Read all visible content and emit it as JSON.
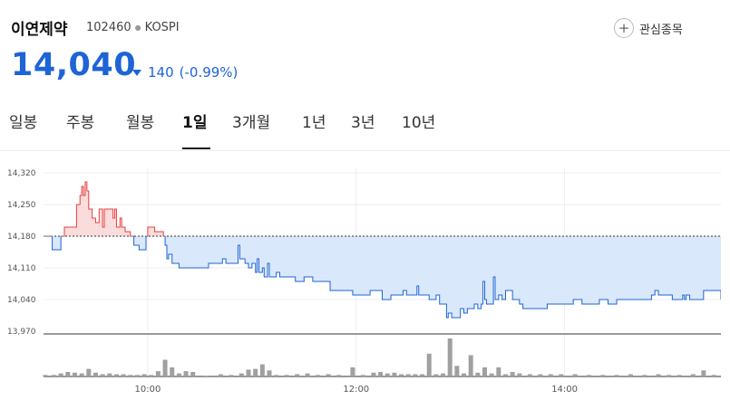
{
  "stock": {
    "name": "이연제약",
    "code": "102460",
    "market": "KOSPI",
    "price": "14,040",
    "change": "140",
    "change_pct": "(-0.99%)",
    "direction": "down"
  },
  "watch_button": {
    "label": "관심종목"
  },
  "tabs": [
    "일봉",
    "주봉",
    "월봉",
    "1일",
    "3개월",
    "1년",
    "3년",
    "10년"
  ],
  "active_tab": "1일",
  "colors": {
    "down": "#1e64d6",
    "up": "#e5403f",
    "down_fill": "#d9e8fb",
    "up_fill": "#fbdcdc",
    "volume": "#a0a0a0"
  },
  "chart_data": {
    "type": "line",
    "reference_price": 14180,
    "ylim": [
      13970,
      14320
    ],
    "y_ticks": [
      "14,320",
      "14,250",
      "14,180",
      "14,110",
      "14,040",
      "13,970"
    ],
    "x_ticks": [
      "10:00",
      "12:00",
      "14:00"
    ],
    "x_range": [
      "09:00",
      "15:30"
    ],
    "series": [
      {
        "points": [
          [
            "09:00",
            14180
          ],
          [
            "09:04",
            14180
          ],
          [
            "09:05",
            14150
          ],
          [
            "09:08",
            14150
          ],
          [
            "09:10",
            14180
          ],
          [
            "09:12",
            14200
          ],
          [
            "09:18",
            14200
          ],
          [
            "09:19",
            14250
          ],
          [
            "09:21",
            14270
          ],
          [
            "09:22",
            14290
          ],
          [
            "09:23",
            14270
          ],
          [
            "09:24",
            14300
          ],
          [
            "09:25",
            14280
          ],
          [
            "09:26",
            14240
          ],
          [
            "09:28",
            14220
          ],
          [
            "09:30",
            14210
          ],
          [
            "09:32",
            14240
          ],
          [
            "09:34",
            14200
          ],
          [
            "09:35",
            14240
          ],
          [
            "09:38",
            14240
          ],
          [
            "09:40",
            14220
          ],
          [
            "09:41",
            14240
          ],
          [
            "09:42",
            14200
          ],
          [
            "09:44",
            14220
          ],
          [
            "09:45",
            14200
          ],
          [
            "09:47",
            14190
          ],
          [
            "09:50",
            14180
          ],
          [
            "09:52",
            14160
          ],
          [
            "09:55",
            14150
          ],
          [
            "09:58",
            14150
          ],
          [
            "09:59",
            14180
          ],
          [
            "10:00",
            14200
          ],
          [
            "10:02",
            14200
          ],
          [
            "10:04",
            14190
          ],
          [
            "10:08",
            14190
          ],
          [
            "10:09",
            14180
          ],
          [
            "10:10",
            14160
          ],
          [
            "10:11",
            14130
          ],
          [
            "10:12",
            14140
          ],
          [
            "10:14",
            14120
          ],
          [
            "10:16",
            14120
          ],
          [
            "10:18",
            14110
          ],
          [
            "10:25",
            14110
          ],
          [
            "10:35",
            14120
          ],
          [
            "10:42",
            14120
          ],
          [
            "10:43",
            14130
          ],
          [
            "10:45",
            14120
          ],
          [
            "10:50",
            14120
          ],
          [
            "10:52",
            14160
          ],
          [
            "10:53",
            14130
          ],
          [
            "10:56",
            14120
          ],
          [
            "10:58",
            14110
          ],
          [
            "11:00",
            14120
          ],
          [
            "11:02",
            14100
          ],
          [
            "11:03",
            14130
          ],
          [
            "11:04",
            14100
          ],
          [
            "11:06",
            14110
          ],
          [
            "11:07",
            14090
          ],
          [
            "11:09",
            14120
          ],
          [
            "11:10",
            14090
          ],
          [
            "11:12",
            14090
          ],
          [
            "11:14",
            14100
          ],
          [
            "11:16",
            14090
          ],
          [
            "11:20",
            14090
          ],
          [
            "11:25",
            14080
          ],
          [
            "11:30",
            14090
          ],
          [
            "11:35",
            14080
          ],
          [
            "11:40",
            14080
          ],
          [
            "11:45",
            14060
          ],
          [
            "11:50",
            14060
          ],
          [
            "11:56",
            14060
          ],
          [
            "11:58",
            14050
          ],
          [
            "12:04",
            14050
          ],
          [
            "12:08",
            14060
          ],
          [
            "12:12",
            14060
          ],
          [
            "12:15",
            14040
          ],
          [
            "12:20",
            14050
          ],
          [
            "12:24",
            14050
          ],
          [
            "12:27",
            14060
          ],
          [
            "12:29",
            14050
          ],
          [
            "12:33",
            14050
          ],
          [
            "12:35",
            14070
          ],
          [
            "12:36",
            14050
          ],
          [
            "12:40",
            14050
          ],
          [
            "12:42",
            14040
          ],
          [
            "12:44",
            14040
          ],
          [
            "12:46",
            14050
          ],
          [
            "12:48",
            14030
          ],
          [
            "12:50",
            14030
          ],
          [
            "12:52",
            14000
          ],
          [
            "12:53",
            14010
          ],
          [
            "12:55",
            14000
          ],
          [
            "12:58",
            14000
          ],
          [
            "13:00",
            14020
          ],
          [
            "13:02",
            14010
          ],
          [
            "13:04",
            14020
          ],
          [
            "13:06",
            14020
          ],
          [
            "13:08",
            14030
          ],
          [
            "13:10",
            14020
          ],
          [
            "13:12",
            14030
          ],
          [
            "13:13",
            14080
          ],
          [
            "13:14",
            14040
          ],
          [
            "13:15",
            14030
          ],
          [
            "13:18",
            14030
          ],
          [
            "13:19",
            14090
          ],
          [
            "13:20",
            14040
          ],
          [
            "13:22",
            14050
          ],
          [
            "13:24",
            14040
          ],
          [
            "13:26",
            14060
          ],
          [
            "13:28",
            14060
          ],
          [
            "13:30",
            14040
          ],
          [
            "13:32",
            14040
          ],
          [
            "13:34",
            14030
          ],
          [
            "13:36",
            14020
          ],
          [
            "13:38",
            14020
          ],
          [
            "13:45",
            14020
          ],
          [
            "13:50",
            14030
          ],
          [
            "13:56",
            14030
          ],
          [
            "14:00",
            14030
          ],
          [
            "14:05",
            14040
          ],
          [
            "14:10",
            14030
          ],
          [
            "14:15",
            14030
          ],
          [
            "14:20",
            14040
          ],
          [
            "14:25",
            14030
          ],
          [
            "14:30",
            14040
          ],
          [
            "14:35",
            14040
          ],
          [
            "14:40",
            14040
          ],
          [
            "14:45",
            14040
          ],
          [
            "14:50",
            14050
          ],
          [
            "14:52",
            14060
          ],
          [
            "14:54",
            14050
          ],
          [
            "14:58",
            14050
          ],
          [
            "15:00",
            14050
          ],
          [
            "15:02",
            14040
          ],
          [
            "15:05",
            14040
          ],
          [
            "15:08",
            14050
          ],
          [
            "15:09",
            14040
          ],
          [
            "15:10",
            14050
          ],
          [
            "15:12",
            14040
          ],
          [
            "15:16",
            14040
          ],
          [
            "15:20",
            14060
          ],
          [
            "15:30",
            14040
          ]
        ]
      }
    ],
    "volume": [
      {
        "t": "09:01",
        "v": 2
      },
      {
        "t": "09:06",
        "v": 2
      },
      {
        "t": "09:10",
        "v": 4
      },
      {
        "t": "09:14",
        "v": 6
      },
      {
        "t": "09:18",
        "v": 5
      },
      {
        "t": "09:22",
        "v": 4
      },
      {
        "t": "09:26",
        "v": 10
      },
      {
        "t": "09:30",
        "v": 5
      },
      {
        "t": "09:34",
        "v": 3
      },
      {
        "t": "09:38",
        "v": 4
      },
      {
        "t": "09:42",
        "v": 3
      },
      {
        "t": "09:46",
        "v": 3
      },
      {
        "t": "09:50",
        "v": 2
      },
      {
        "t": "09:54",
        "v": 2
      },
      {
        "t": "09:58",
        "v": 3
      },
      {
        "t": "10:02",
        "v": 2
      },
      {
        "t": "10:06",
        "v": 7
      },
      {
        "t": "10:10",
        "v": 22
      },
      {
        "t": "10:14",
        "v": 12
      },
      {
        "t": "10:18",
        "v": 4
      },
      {
        "t": "10:22",
        "v": 7
      },
      {
        "t": "10:26",
        "v": 6
      },
      {
        "t": "10:34",
        "v": 1
      },
      {
        "t": "10:42",
        "v": 3
      },
      {
        "t": "10:48",
        "v": 2
      },
      {
        "t": "10:54",
        "v": 4
      },
      {
        "t": "10:58",
        "v": 9
      },
      {
        "t": "11:02",
        "v": 10
      },
      {
        "t": "11:06",
        "v": 16
      },
      {
        "t": "11:10",
        "v": 8
      },
      {
        "t": "11:14",
        "v": 2
      },
      {
        "t": "11:20",
        "v": 2
      },
      {
        "t": "11:26",
        "v": 3
      },
      {
        "t": "11:32",
        "v": 4
      },
      {
        "t": "11:38",
        "v": 2
      },
      {
        "t": "11:44",
        "v": 3
      },
      {
        "t": "11:50",
        "v": 2
      },
      {
        "t": "11:58",
        "v": 12
      },
      {
        "t": "12:04",
        "v": 2
      },
      {
        "t": "12:10",
        "v": 5
      },
      {
        "t": "12:14",
        "v": 6
      },
      {
        "t": "12:18",
        "v": 4
      },
      {
        "t": "12:22",
        "v": 5
      },
      {
        "t": "12:26",
        "v": 3
      },
      {
        "t": "12:30",
        "v": 3
      },
      {
        "t": "12:34",
        "v": 3
      },
      {
        "t": "12:38",
        "v": 3
      },
      {
        "t": "12:42",
        "v": 30
      },
      {
        "t": "12:46",
        "v": 3
      },
      {
        "t": "12:50",
        "v": 4
      },
      {
        "t": "12:54",
        "v": 50
      },
      {
        "t": "12:58",
        "v": 14
      },
      {
        "t": "13:02",
        "v": 4
      },
      {
        "t": "13:06",
        "v": 28
      },
      {
        "t": "13:10",
        "v": 5
      },
      {
        "t": "13:14",
        "v": 12
      },
      {
        "t": "13:18",
        "v": 4
      },
      {
        "t": "13:22",
        "v": 12
      },
      {
        "t": "13:26",
        "v": 3
      },
      {
        "t": "13:30",
        "v": 6
      },
      {
        "t": "13:34",
        "v": 4
      },
      {
        "t": "13:40",
        "v": 3
      },
      {
        "t": "13:46",
        "v": 3
      },
      {
        "t": "13:52",
        "v": 3
      },
      {
        "t": "13:58",
        "v": 3
      },
      {
        "t": "14:06",
        "v": 3
      },
      {
        "t": "14:14",
        "v": 2
      },
      {
        "t": "14:22",
        "v": 2
      },
      {
        "t": "14:30",
        "v": 2
      },
      {
        "t": "14:38",
        "v": 3
      },
      {
        "t": "14:46",
        "v": 2
      },
      {
        "t": "14:54",
        "v": 3
      },
      {
        "t": "15:00",
        "v": 2
      },
      {
        "t": "15:06",
        "v": 2
      },
      {
        "t": "15:14",
        "v": 3
      },
      {
        "t": "15:20",
        "v": 8
      },
      {
        "t": "15:26",
        "v": 2
      }
    ]
  }
}
